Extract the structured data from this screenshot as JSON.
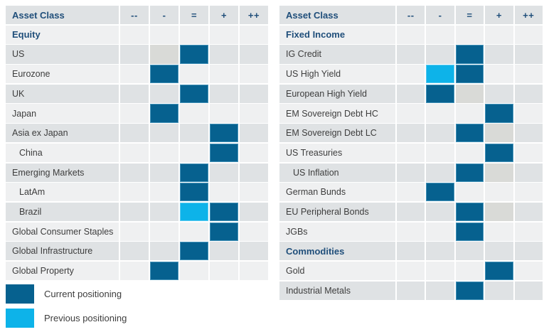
{
  "header_label": "Asset Class",
  "columns": [
    "--",
    "-",
    "=",
    "+",
    "++"
  ],
  "colors": {
    "current": "#06618f",
    "previous": "#0db3e9",
    "faded_gray": "#d9dad7",
    "row_light": "#eff0f1",
    "row_dark": "#dfe2e4",
    "heading_text": "#1f4e7a",
    "body_text": "#3d3d3d"
  },
  "legend": [
    {
      "key": "current",
      "label": "Current positioning",
      "color": "#06618f"
    },
    {
      "key": "previous",
      "label": "Previous positioning",
      "color": "#0db3e9"
    }
  ],
  "chart_data": [
    {
      "type": "heatmap",
      "title": "Equity asset class positioning",
      "header": "Asset Class",
      "columns": [
        "--",
        "-",
        "=",
        "+",
        "++"
      ],
      "legend_position": "bottom-left",
      "rows": [
        {
          "label": "Equity",
          "section": true,
          "indent": false,
          "cells": [
            "",
            "",
            "",
            "",
            ""
          ]
        },
        {
          "label": "US",
          "section": false,
          "indent": false,
          "cells": [
            "",
            "muted",
            "current",
            "",
            ""
          ]
        },
        {
          "label": "Eurozone",
          "section": false,
          "indent": false,
          "cells": [
            "",
            "current",
            "",
            "",
            ""
          ]
        },
        {
          "label": "UK",
          "section": false,
          "indent": false,
          "cells": [
            "",
            "",
            "current",
            "",
            ""
          ]
        },
        {
          "label": "Japan",
          "section": false,
          "indent": false,
          "cells": [
            "",
            "current",
            "",
            "",
            ""
          ]
        },
        {
          "label": "Asia ex Japan",
          "section": false,
          "indent": false,
          "cells": [
            "",
            "",
            "",
            "current",
            ""
          ]
        },
        {
          "label": "China",
          "section": false,
          "indent": true,
          "cells": [
            "",
            "",
            "",
            "current",
            ""
          ]
        },
        {
          "label": "Emerging Markets",
          "section": false,
          "indent": false,
          "cells": [
            "",
            "",
            "current",
            "",
            ""
          ]
        },
        {
          "label": "LatAm",
          "section": false,
          "indent": true,
          "cells": [
            "",
            "",
            "current",
            "",
            ""
          ]
        },
        {
          "label": "Brazil",
          "section": false,
          "indent": true,
          "cells": [
            "",
            "",
            "previous",
            "current",
            ""
          ]
        },
        {
          "label": "Global Consumer Staples",
          "section": false,
          "indent": false,
          "cells": [
            "",
            "",
            "",
            "current",
            ""
          ]
        },
        {
          "label": "Global Infrastructure",
          "section": false,
          "indent": false,
          "cells": [
            "",
            "",
            "current",
            "",
            ""
          ]
        },
        {
          "label": "Global Property",
          "section": false,
          "indent": false,
          "cells": [
            "",
            "current",
            "",
            "",
            ""
          ]
        }
      ]
    },
    {
      "type": "heatmap",
      "title": "Fixed Income and Commodities asset class positioning",
      "header": "Asset Class",
      "columns": [
        "--",
        "-",
        "=",
        "+",
        "++"
      ],
      "legend_position": "none",
      "rows": [
        {
          "label": "Fixed Income",
          "section": true,
          "indent": false,
          "cells": [
            "",
            "",
            "",
            "",
            ""
          ]
        },
        {
          "label": "IG Credit",
          "section": false,
          "indent": false,
          "cells": [
            "",
            "",
            "current",
            "",
            ""
          ]
        },
        {
          "label": "US High Yield",
          "section": false,
          "indent": false,
          "cells": [
            "",
            "previous",
            "current",
            "",
            ""
          ]
        },
        {
          "label": "European High Yield",
          "section": false,
          "indent": false,
          "cells": [
            "",
            "current",
            "muted",
            "",
            ""
          ]
        },
        {
          "label": "EM Sovereign Debt HC",
          "section": false,
          "indent": false,
          "cells": [
            "",
            "",
            "",
            "current",
            ""
          ]
        },
        {
          "label": "EM Sovereign Debt LC",
          "section": false,
          "indent": false,
          "cells": [
            "",
            "",
            "current",
            "muted",
            ""
          ]
        },
        {
          "label": "US Treasuries",
          "section": false,
          "indent": false,
          "cells": [
            "",
            "",
            "",
            "current",
            ""
          ]
        },
        {
          "label": "US Inflation",
          "section": false,
          "indent": true,
          "cells": [
            "",
            "",
            "current",
            "muted",
            ""
          ]
        },
        {
          "label": "German Bunds",
          "section": false,
          "indent": false,
          "cells": [
            "",
            "current",
            "",
            "",
            ""
          ]
        },
        {
          "label": "EU Peripheral Bonds",
          "section": false,
          "indent": false,
          "cells": [
            "",
            "",
            "current",
            "muted",
            ""
          ]
        },
        {
          "label": "JGBs",
          "section": false,
          "indent": false,
          "cells": [
            "",
            "",
            "current",
            "",
            ""
          ]
        },
        {
          "label": "Commodities",
          "section": true,
          "indent": false,
          "cells": [
            "",
            "",
            "",
            "",
            ""
          ]
        },
        {
          "label": "Gold",
          "section": false,
          "indent": false,
          "cells": [
            "",
            "",
            "",
            "current",
            ""
          ]
        },
        {
          "label": "Industrial Metals",
          "section": false,
          "indent": false,
          "cells": [
            "",
            "",
            "current",
            "",
            ""
          ]
        }
      ]
    }
  ]
}
